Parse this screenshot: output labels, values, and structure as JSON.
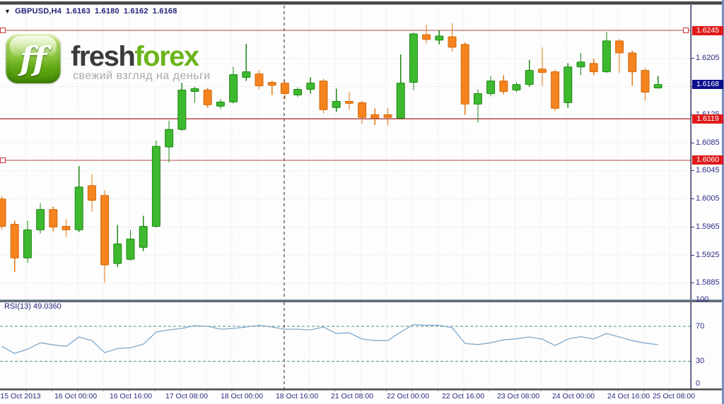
{
  "window": {
    "dropdown_icon": "▼",
    "symbol_title": "GBPUSD,H4",
    "bar_open": "1.6163",
    "bar_high": "1.6180",
    "bar_low": "1.6162",
    "bar_close": "1.6168"
  },
  "logo": {
    "icon_text": "ff",
    "word_dark": "fresh",
    "word_green": "forex",
    "tagline": "свежий взгляд на деньги"
  },
  "indicator": {
    "label": "RSI(13) 49.0360"
  },
  "axes": {
    "price_labels": [
      "1.6205",
      "1.6165",
      "1.6125",
      "1.6085",
      "1.6045",
      "1.6005",
      "1.5965",
      "1.5925",
      "1.5885"
    ],
    "rsi_labels": [
      "100",
      "70",
      "30",
      "0"
    ],
    "time_labels": [
      "15 Oct 2013",
      "16 Oct 00:00",
      "16 Oct 16:00",
      "17 Oct 08:00",
      "18 Oct 00:00",
      "18 Oct 16:00",
      "21 Oct 08:00",
      "22 Oct 00:00",
      "22 Oct 16:00",
      "23 Oct 08:00",
      "24 Oct 00:00",
      "24 Oct 16:00",
      "25 Oct 08:00"
    ]
  },
  "badges": {
    "red": [
      "1.6245",
      "1.6119",
      "1.6060"
    ],
    "blue": "1.6168"
  },
  "colors": {
    "bull_fill": "#3eb92f",
    "bull_border": "#1f8715",
    "bear_fill": "#f5831e",
    "bear_border": "#d2690b",
    "red_line": "#b24a4a",
    "badge_red": "#df1a1a",
    "badge_blue": "#0d0d8e",
    "grid": "#d9d9d9",
    "rsi_line": "#7fa8cc",
    "rsi_level": "#4f8a8a",
    "axis_text": "#2b2b86",
    "border_navy": "#353564",
    "dashed_vline": "#222222"
  },
  "chart_data": {
    "type": "candlestick",
    "symbol": "GBPUSD",
    "timeframe": "H4",
    "title": "GBPUSD,H4 1.6163 1.6180 1.6162 1.6168",
    "price_axis_range": [
      1.5885,
      1.6273
    ],
    "grid_step": 0.004,
    "hlines": [
      1.6245,
      1.6119,
      1.606
    ],
    "current_price": 1.6168,
    "x_time_labels": [
      "15 Oct 2013",
      "16 Oct 00:00",
      "16 Oct 16:00",
      "17 Oct 08:00",
      "18 Oct 00:00",
      "18 Oct 16:00",
      "21 Oct 08:00",
      "22 Oct 00:00",
      "22 Oct 16:00",
      "23 Oct 08:00",
      "24 Oct 00:00",
      "24 Oct 16:00",
      "25 Oct 08:00"
    ],
    "candles_ohlc": [
      [
        1.6005,
        1.6009,
        1.5961,
        1.5966
      ],
      [
        1.5969,
        1.5974,
        1.5901,
        1.5921
      ],
      [
        1.5921,
        1.5974,
        1.5914,
        1.5961
      ],
      [
        1.5961,
        1.5999,
        1.5956,
        1.599
      ],
      [
        1.599,
        1.5994,
        1.5959,
        1.5965
      ],
      [
        1.5966,
        1.5976,
        1.5951,
        1.5961
      ],
      [
        1.5961,
        1.6052,
        1.5958,
        1.6022
      ],
      [
        1.6024,
        1.604,
        1.5987,
        1.6003
      ],
      [
        1.601,
        1.6017,
        1.5886,
        1.5911
      ],
      [
        1.5913,
        1.5968,
        1.5908,
        1.5941
      ],
      [
        1.5919,
        1.5961,
        1.5917,
        1.5948
      ],
      [
        1.5936,
        1.5981,
        1.5931,
        1.5966
      ],
      [
        1.5966,
        1.6088,
        1.5964,
        1.608
      ],
      [
        1.6079,
        1.6117,
        1.6057,
        1.6104
      ],
      [
        1.6104,
        1.617,
        1.6102,
        1.616
      ],
      [
        1.6158,
        1.6165,
        1.6142,
        1.6162
      ],
      [
        1.616,
        1.6163,
        1.6135,
        1.6139
      ],
      [
        1.6137,
        1.6147,
        1.6133,
        1.6143
      ],
      [
        1.6143,
        1.6193,
        1.6141,
        1.6182
      ],
      [
        1.6178,
        1.6226,
        1.6173,
        1.6186
      ],
      [
        1.6183,
        1.6188,
        1.6161,
        1.6166
      ],
      [
        1.6171,
        1.6173,
        1.6153,
        1.6167
      ],
      [
        1.617,
        1.6173,
        1.6147,
        1.6155
      ],
      [
        1.6153,
        1.6164,
        1.615,
        1.6161
      ],
      [
        1.6161,
        1.6178,
        1.6155,
        1.617
      ],
      [
        1.6173,
        1.6176,
        1.6127,
        1.6132
      ],
      [
        1.6135,
        1.6162,
        1.6129,
        1.6144
      ],
      [
        1.6144,
        1.6157,
        1.6132,
        1.6141
      ],
      [
        1.6142,
        1.6145,
        1.6112,
        1.6121
      ],
      [
        1.6125,
        1.6134,
        1.611,
        1.612
      ],
      [
        1.6125,
        1.6135,
        1.6109,
        1.6121
      ],
      [
        1.612,
        1.6211,
        1.6119,
        1.617
      ],
      [
        1.6171,
        1.6242,
        1.616,
        1.624
      ],
      [
        1.6239,
        1.6253,
        1.6226,
        1.6232
      ],
      [
        1.6231,
        1.6245,
        1.6225,
        1.6237
      ],
      [
        1.6236,
        1.6255,
        1.6215,
        1.6221
      ],
      [
        1.6225,
        1.6228,
        1.6125,
        1.614
      ],
      [
        1.614,
        1.6161,
        1.6114,
        1.6155
      ],
      [
        1.6155,
        1.618,
        1.6151,
        1.6173
      ],
      [
        1.6173,
        1.6181,
        1.6154,
        1.6158
      ],
      [
        1.616,
        1.6171,
        1.6157,
        1.6168
      ],
      [
        1.6168,
        1.6203,
        1.6165,
        1.6188
      ],
      [
        1.619,
        1.6221,
        1.6166,
        1.6185
      ],
      [
        1.6186,
        1.6189,
        1.613,
        1.6134
      ],
      [
        1.6142,
        1.6198,
        1.6135,
        1.6193
      ],
      [
        1.6193,
        1.6213,
        1.6181,
        1.62
      ],
      [
        1.6198,
        1.6205,
        1.6181,
        1.6186
      ],
      [
        1.6186,
        1.6243,
        1.6184,
        1.623
      ],
      [
        1.623,
        1.6233,
        1.6184,
        1.6213
      ],
      [
        1.6213,
        1.6216,
        1.6166,
        1.6186
      ],
      [
        1.6188,
        1.6191,
        1.6145,
        1.6157
      ],
      [
        1.6163,
        1.618,
        1.6162,
        1.6168
      ]
    ],
    "rsi": {
      "period": 13,
      "current": 49.036,
      "levels": [
        70,
        30
      ],
      "axis_range": [
        0,
        100
      ],
      "values": [
        47.1,
        39.0,
        43.9,
        51.2,
        48.8,
        47.1,
        57.8,
        53.7,
        39.8,
        44.7,
        45.5,
        49.6,
        63.5,
        65.9,
        67.6,
        70.8,
        70.0,
        66.7,
        67.6,
        69.2,
        71.2,
        69.2,
        66.7,
        66.7,
        65.9,
        69.2,
        61.8,
        62.6,
        55.5,
        53.7,
        53.7,
        63.5,
        72.0,
        71.2,
        71.2,
        68.4,
        50.4,
        49.2,
        51.2,
        54.5,
        55.7,
        57.8,
        55.5,
        48.0,
        55.5,
        58.2,
        55.5,
        61.8,
        57.8,
        53.7,
        50.8,
        49.0
      ]
    }
  }
}
